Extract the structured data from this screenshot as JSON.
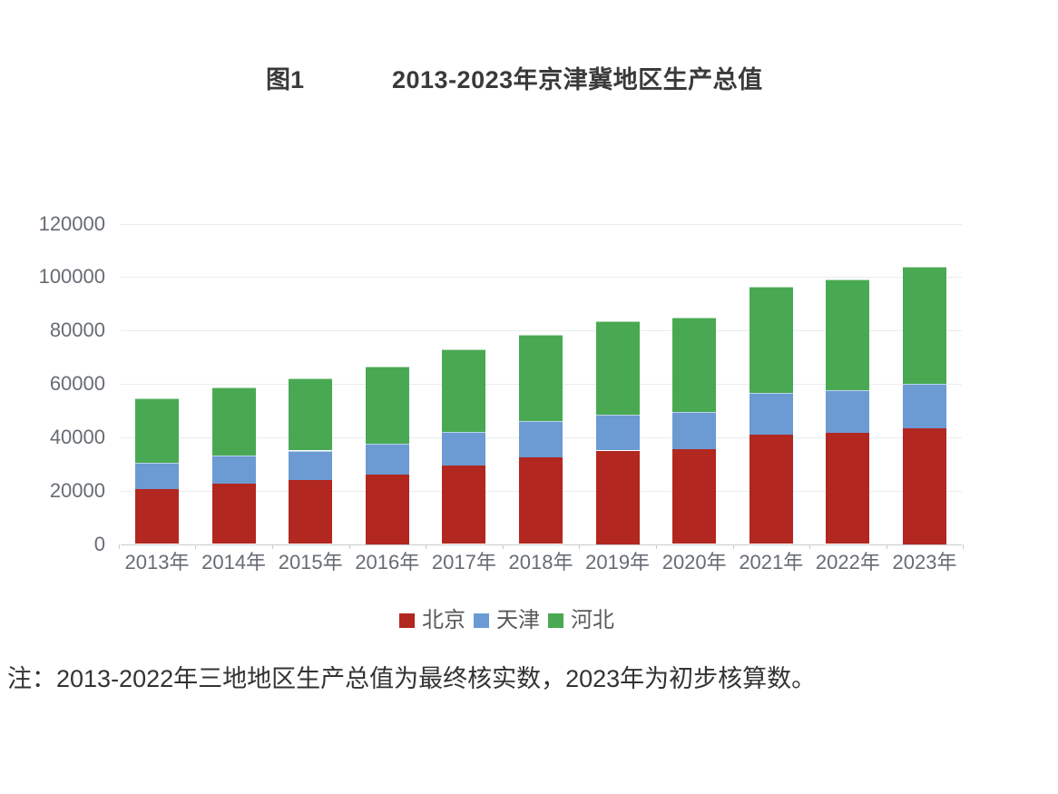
{
  "figure": {
    "label": "图1",
    "title": "2013-2023年京津冀地区生产总值",
    "note": "注：2013-2022年三地地区生产总值为最终核实数，2023年为初步核算数。"
  },
  "chart_data": {
    "type": "bar",
    "stacked": true,
    "title": "2013-2023年京津冀地区生产总值",
    "categories": [
      "2013年",
      "2014年",
      "2015年",
      "2016年",
      "2017年",
      "2018年",
      "2019年",
      "2020年",
      "2021年",
      "2022年",
      "2023年"
    ],
    "series": [
      {
        "name": "北京",
        "color": "#b2271f",
        "values": [
          20500,
          22500,
          24000,
          26000,
          29500,
          32500,
          35000,
          35500,
          41000,
          41500,
          43500
        ]
      },
      {
        "name": "天津",
        "color": "#6b9bd2",
        "values": [
          10000,
          10500,
          11000,
          11500,
          12500,
          13500,
          13500,
          14000,
          15500,
          16000,
          16500
        ]
      },
      {
        "name": "河北",
        "color": "#49a953",
        "values": [
          24000,
          25500,
          27000,
          29000,
          31000,
          32500,
          35000,
          35500,
          40000,
          41500,
          44000
        ]
      }
    ],
    "stack_totals": [
      54500,
      58500,
      62000,
      66500,
      73000,
      78500,
      83500,
      85000,
      96500,
      99000,
      104000
    ],
    "xlabel": "",
    "ylabel": "",
    "ylim": [
      0,
      120000
    ],
    "yticks": [
      0,
      20000,
      40000,
      60000,
      80000,
      100000,
      120000
    ],
    "grid": true,
    "legend_position": "bottom",
    "legend_entries": [
      "北京",
      "天津",
      "河北"
    ]
  },
  "colors": {
    "gridline": "#e9ebed",
    "axis_line": "#c8cdd2",
    "title_text": "#3a3a3a",
    "axis_text": "#666c73",
    "legend_text": "#595959",
    "beijing_red": "#b2271f",
    "tianjin_blue": "#6b9bd2",
    "hebei_green": "#49a953"
  }
}
